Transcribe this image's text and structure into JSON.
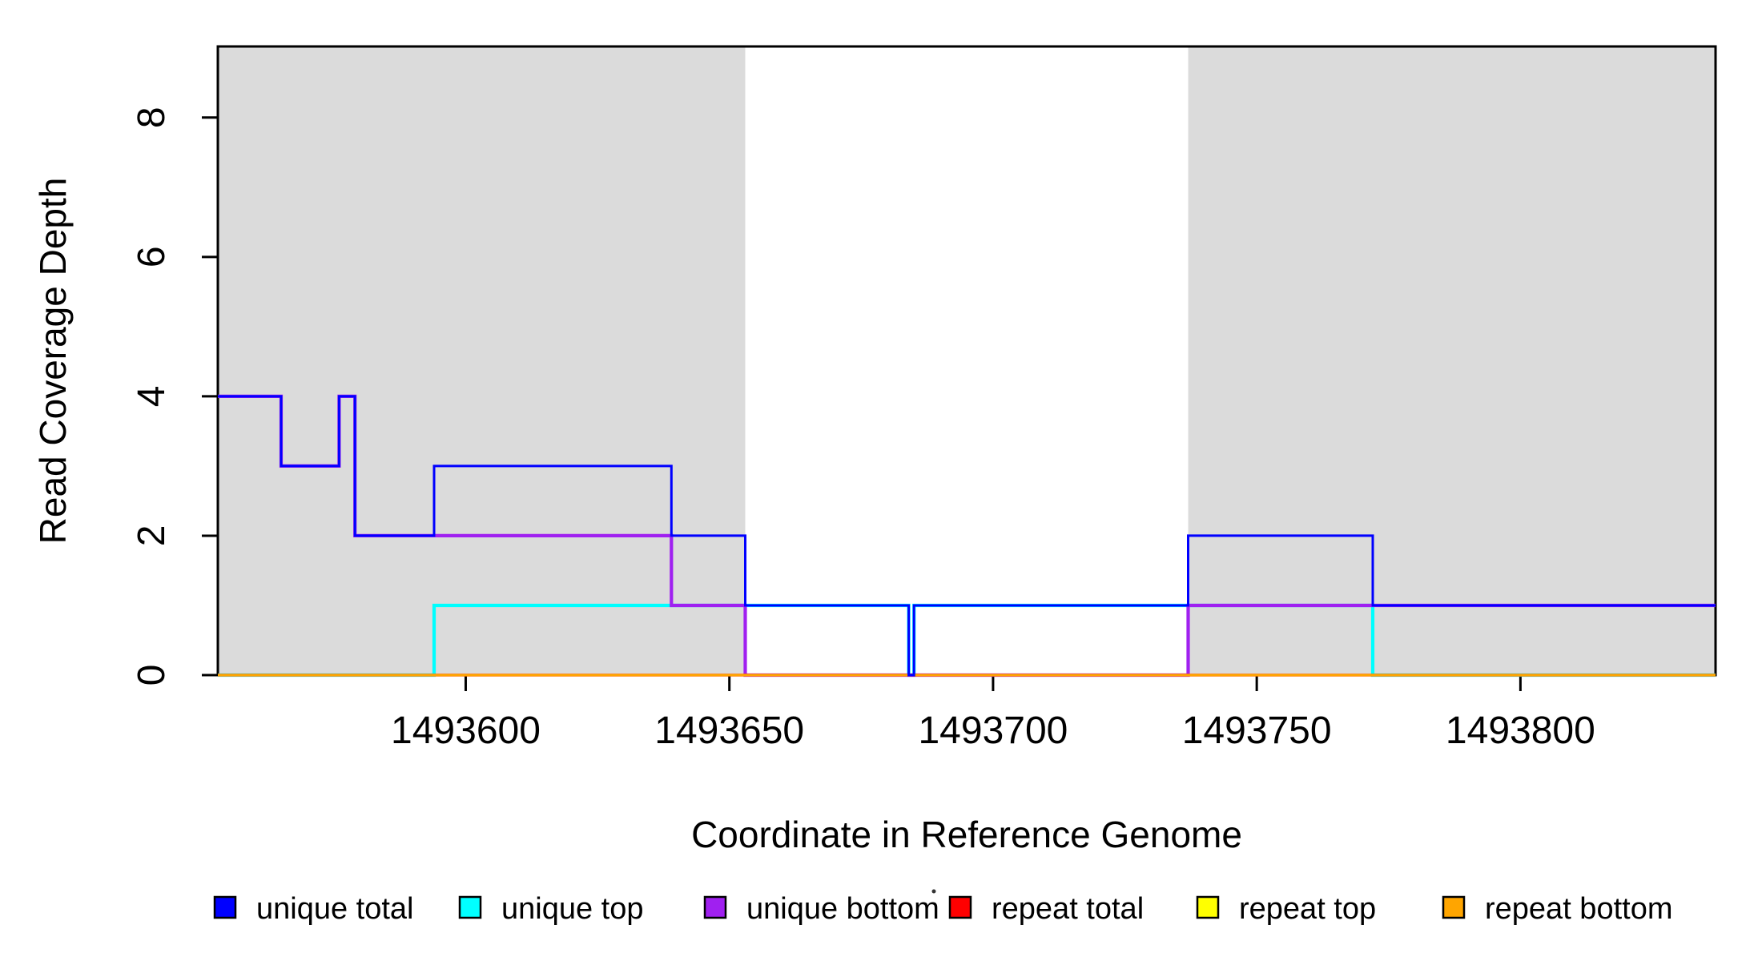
{
  "chart_data": {
    "type": "line",
    "subtype": "step-after",
    "title": "",
    "xlabel": "Coordinate in Reference Genome",
    "ylabel": "Read Coverage Depth",
    "xlim": [
      1493553,
      1493837
    ],
    "ylim": [
      0,
      9.02
    ],
    "x_ticks": [
      1493600,
      1493650,
      1493700,
      1493750,
      1493800
    ],
    "y_ticks": [
      0,
      2,
      4,
      6,
      8
    ],
    "grid": false,
    "legend_position": "bottom",
    "shaded_regions": {
      "meaning": "repeat regions (shaded band spans full plot height)",
      "color": "#DBDBDB",
      "ranges": [
        [
          1493553,
          1493653
        ],
        [
          1493737,
          1493837
        ]
      ]
    },
    "series": [
      {
        "name": "unique total",
        "color": "#0000FF",
        "points": [
          [
            1493553,
            4
          ],
          [
            1493565,
            3
          ],
          [
            1493576,
            4
          ],
          [
            1493579,
            2
          ],
          [
            1493594,
            3
          ],
          [
            1493639,
            2
          ],
          [
            1493653,
            1
          ],
          [
            1493684,
            0
          ],
          [
            1493685,
            1
          ],
          [
            1493737,
            2
          ],
          [
            1493772,
            1
          ],
          [
            1493837,
            1
          ]
        ]
      },
      {
        "name": "unique top",
        "color": "#00FFFF",
        "points": [
          [
            1493553,
            0
          ],
          [
            1493594,
            1
          ],
          [
            1493684,
            0
          ],
          [
            1493685,
            1
          ],
          [
            1493772,
            0
          ],
          [
            1493837,
            0
          ]
        ]
      },
      {
        "name": "unique bottom",
        "color": "#A020F0",
        "points": [
          [
            1493553,
            4
          ],
          [
            1493565,
            3
          ],
          [
            1493576,
            4
          ],
          [
            1493579,
            2
          ],
          [
            1493639,
            1
          ],
          [
            1493653,
            0
          ],
          [
            1493737,
            1
          ],
          [
            1493837,
            1
          ]
        ]
      },
      {
        "name": "repeat total",
        "color": "#FF0000",
        "points": [
          [
            1493553,
            0
          ],
          [
            1493837,
            0
          ]
        ]
      },
      {
        "name": "repeat top",
        "color": "#FFFF00",
        "points": [
          [
            1493553,
            0
          ],
          [
            1493837,
            0
          ]
        ]
      },
      {
        "name": "repeat bottom",
        "color": "#FFA500",
        "points": [
          [
            1493553,
            0
          ],
          [
            1493837,
            0
          ]
        ]
      }
    ],
    "legend": {
      "title_dot": ".",
      "entries": [
        {
          "label": "unique total",
          "color": "#0000FF"
        },
        {
          "label": "unique top",
          "color": "#00FFFF"
        },
        {
          "label": "unique bottom",
          "color": "#A020F0"
        },
        {
          "label": "repeat total",
          "color": "#FF0000"
        },
        {
          "label": "repeat top",
          "color": "#FFFF00"
        },
        {
          "label": "repeat bottom",
          "color": "#FFA500"
        }
      ]
    },
    "axis_color": "#000000"
  }
}
